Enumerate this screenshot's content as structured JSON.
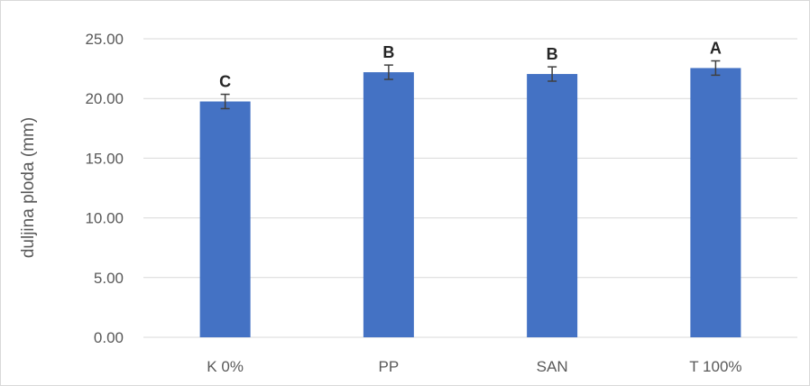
{
  "chart_data": {
    "type": "bar",
    "categories": [
      "K 0%",
      "PP",
      "SAN",
      "T 100%"
    ],
    "values": [
      19.75,
      22.2,
      22.05,
      22.55
    ],
    "errors": [
      0.6,
      0.6,
      0.6,
      0.6
    ],
    "significance_labels": [
      "C",
      "B",
      "B",
      "A"
    ],
    "title": "",
    "xlabel": "",
    "ylabel": "duljina ploda (mm)",
    "ylim": [
      0,
      25
    ],
    "yticks": [
      "0.00",
      "5.00",
      "10.00",
      "15.00",
      "20.00",
      "25.00"
    ],
    "ytick_values": [
      0,
      5,
      10,
      15,
      20,
      25
    ],
    "bar_color": "#4472c4",
    "grid": true,
    "legend": "none"
  }
}
